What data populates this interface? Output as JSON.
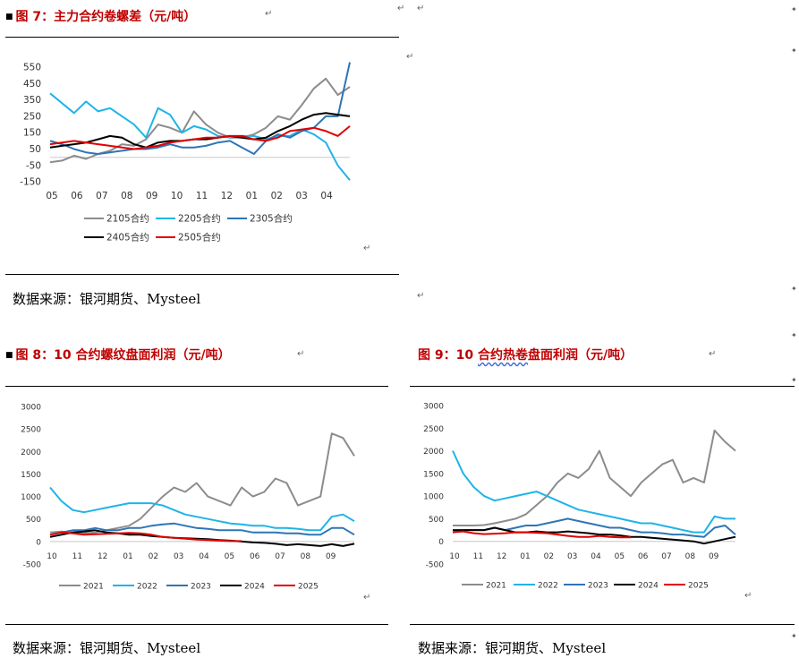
{
  "figures": [
    {
      "title": "图 7：主力合约卷螺差（元/吨）",
      "source": "数据来源：银河期货、Mysteel",
      "chart_data": {
        "type": "line",
        "title": "",
        "xlabel": "",
        "ylabel": "",
        "x_ticks": [
          "05",
          "06",
          "07",
          "08",
          "09",
          "10",
          "11",
          "12",
          "01",
          "02",
          "03",
          "04"
        ],
        "y_ticks": [
          -150,
          -50,
          50,
          150,
          250,
          350,
          450,
          550
        ],
        "ylim": [
          -160,
          610
        ],
        "baseline": 0,
        "legend_position": "bottom",
        "series": [
          {
            "name": "2105合约",
            "color": "#8c8c8c",
            "values": [
              -30,
              -20,
              10,
              -10,
              20,
              40,
              80,
              70,
              110,
              200,
              180,
              150,
              280,
              200,
              150,
              120,
              120,
              140,
              180,
              250,
              230,
              320,
              420,
              480,
              380,
              430
            ]
          },
          {
            "name": "2205合约",
            "color": "#1fb4e8",
            "values": [
              390,
              330,
              270,
              340,
              280,
              300,
              250,
              200,
              120,
              300,
              260,
              150,
              190,
              170,
              130,
              120,
              130,
              130,
              110,
              130,
              130,
              170,
              140,
              90,
              -50,
              -140
            ]
          },
          {
            "name": "2305合约",
            "color": "#2e75b6",
            "values": [
              100,
              80,
              50,
              30,
              20,
              30,
              40,
              50,
              50,
              60,
              80,
              60,
              60,
              70,
              90,
              100,
              60,
              20,
              100,
              140,
              120,
              160,
              180,
              250,
              250,
              580
            ]
          },
          {
            "name": "2405合约",
            "color": "#000000",
            "values": [
              60,
              70,
              80,
              90,
              110,
              130,
              120,
              80,
              60,
              90,
              100,
              100,
              110,
              110,
              120,
              130,
              120,
              110,
              120,
              160,
              190,
              230,
              260,
              270,
              260,
              250
            ]
          },
          {
            "name": "2505合约",
            "color": "#e00000",
            "values": [
              80,
              90,
              100,
              90,
              80,
              70,
              60,
              50,
              60,
              70,
              90,
              100,
              110,
              120,
              120,
              130,
              130,
              110,
              100,
              120,
              160,
              170,
              180,
              160,
              130,
              190
            ]
          }
        ]
      }
    },
    {
      "title": "图 8：10 合约螺纹盘面利润（元/吨）",
      "source": "数据来源：银河期货、Mysteel",
      "chart_data": {
        "type": "line",
        "title": "",
        "xlabel": "",
        "ylabel": "",
        "x_ticks": [
          "10",
          "11",
          "12",
          "01",
          "02",
          "03",
          "04",
          "05",
          "06",
          "07",
          "08",
          "09"
        ],
        "y_ticks": [
          -500,
          0,
          500,
          1000,
          1500,
          2000,
          2500,
          3000
        ],
        "ylim": [
          -500,
          3000
        ],
        "baseline": 0,
        "legend_position": "bottom",
        "series": [
          {
            "name": "2021",
            "color": "#8c8c8c",
            "values": [
              200,
              220,
              200,
              180,
              200,
              250,
              300,
              350,
              500,
              750,
              1000,
              1200,
              1100,
              1300,
              1000,
              900,
              800,
              1200,
              1000,
              1100,
              1400,
              1300,
              800,
              900,
              1000,
              2400,
              2300,
              1900
            ]
          },
          {
            "name": "2022",
            "color": "#1fb4e8",
            "values": [
              1200,
              900,
              700,
              650,
              700,
              750,
              800,
              850,
              850,
              850,
              800,
              700,
              600,
              550,
              500,
              450,
              400,
              380,
              350,
              350,
              300,
              300,
              280,
              250,
              250,
              550,
              600,
              450
            ]
          },
          {
            "name": "2023",
            "color": "#2e75b6",
            "values": [
              150,
              200,
              250,
              250,
              300,
              250,
              250,
              300,
              300,
              350,
              380,
              400,
              350,
              300,
              280,
              250,
              250,
              250,
              200,
              200,
              200,
              180,
              180,
              150,
              150,
              300,
              300,
              150
            ]
          },
          {
            "name": "2024",
            "color": "#000000",
            "values": [
              100,
              150,
              200,
              220,
              250,
              200,
              180,
              150,
              150,
              120,
              100,
              80,
              70,
              60,
              50,
              30,
              20,
              0,
              -20,
              -30,
              -50,
              -80,
              -60,
              -80,
              -100,
              -60,
              -100,
              -50
            ]
          },
          {
            "name": "2025",
            "color": "#e00000",
            "values": [
              150,
              200,
              180,
              150,
              160,
              170,
              180,
              190,
              180,
              150,
              100,
              80,
              60,
              40,
              30,
              20,
              10,
              10
            ]
          }
        ]
      }
    },
    {
      "title": "图 9：10 合约热卷盘面利润（元/吨）",
      "title_pre": "图 9：10 ",
      "title_wavy": "合约热卷",
      "title_post": "盘面利润（元/吨）",
      "source": "数据来源：银河期货、Mysteel",
      "chart_data": {
        "type": "line",
        "title": "",
        "xlabel": "",
        "ylabel": "",
        "x_ticks": [
          "10",
          "11",
          "12",
          "01",
          "02",
          "03",
          "04",
          "05",
          "06",
          "07",
          "08",
          "09"
        ],
        "y_ticks": [
          -500,
          0,
          500,
          1000,
          1500,
          2000,
          2500,
          3000
        ],
        "ylim": [
          -500,
          3000
        ],
        "baseline": 0,
        "legend_position": "bottom",
        "series": [
          {
            "name": "2021",
            "color": "#8c8c8c",
            "values": [
              350,
              350,
              350,
              360,
              400,
              450,
              500,
              600,
              800,
              1000,
              1300,
              1500,
              1400,
              1600,
              2000,
              1400,
              1200,
              1000,
              1300,
              1500,
              1700,
              1800,
              1300,
              1400,
              1300,
              2450,
              2200,
              2000
            ]
          },
          {
            "name": "2022",
            "color": "#1fb4e8",
            "values": [
              2000,
              1500,
              1200,
              1000,
              900,
              950,
              1000,
              1050,
              1100,
              1000,
              900,
              800,
              700,
              650,
              600,
              550,
              500,
              450,
              400,
              400,
              350,
              300,
              250,
              200,
              200,
              550,
              500,
              500
            ]
          },
          {
            "name": "2023",
            "color": "#2e75b6",
            "values": [
              200,
              250,
              250,
              250,
              300,
              250,
              300,
              350,
              350,
              400,
              450,
              500,
              450,
              400,
              350,
              300,
              300,
              250,
              200,
              200,
              180,
              150,
              150,
              120,
              100,
              300,
              350,
              150
            ]
          },
          {
            "name": "2024",
            "color": "#000000",
            "values": [
              250,
              250,
              250,
              250,
              300,
              250,
              200,
              200,
              220,
              200,
              200,
              220,
              200,
              180,
              150,
              150,
              130,
              100,
              100,
              80,
              60,
              40,
              20,
              0,
              -50,
              0,
              50,
              100
            ]
          },
          {
            "name": "2025",
            "color": "#e00000",
            "values": [
              200,
              220,
              180,
              160,
              170,
              180,
              200,
              200,
              190,
              180,
              150,
              120,
              100,
              100,
              120,
              100,
              90,
              90
            ]
          }
        ]
      }
    }
  ],
  "marks": {
    "return": "↵",
    "anchor": "⇲"
  }
}
